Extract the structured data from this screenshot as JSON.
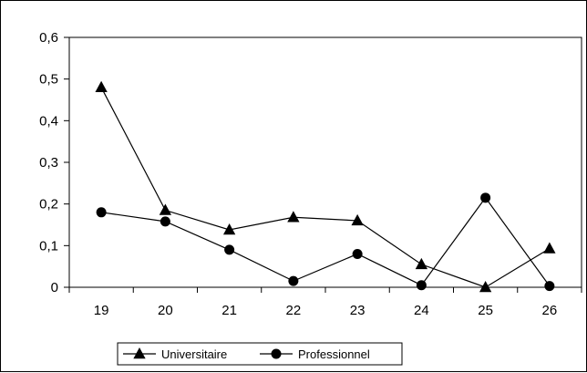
{
  "chart_data": {
    "type": "line",
    "x": [
      "19",
      "20",
      "21",
      "22",
      "23",
      "24",
      "25",
      "26"
    ],
    "ylim": [
      0,
      0.6
    ],
    "yticks": [
      0,
      0.1,
      0.2,
      0.3,
      0.4,
      0.5,
      0.6
    ],
    "ytick_labels": [
      "0",
      "0,1",
      "0,2",
      "0,3",
      "0,4",
      "0,5",
      "0,6"
    ],
    "grid": false,
    "legend_position": "bottom",
    "series": [
      {
        "name": "Universitaire",
        "marker": "triangle",
        "color": "#000000",
        "values": [
          0.48,
          0.185,
          0.138,
          0.168,
          0.16,
          0.055,
          0.0,
          0.093
        ]
      },
      {
        "name": "Professionnel",
        "marker": "circle",
        "color": "#000000",
        "values": [
          0.18,
          0.158,
          0.09,
          0.015,
          0.08,
          0.005,
          0.215,
          0.003
        ]
      }
    ]
  }
}
